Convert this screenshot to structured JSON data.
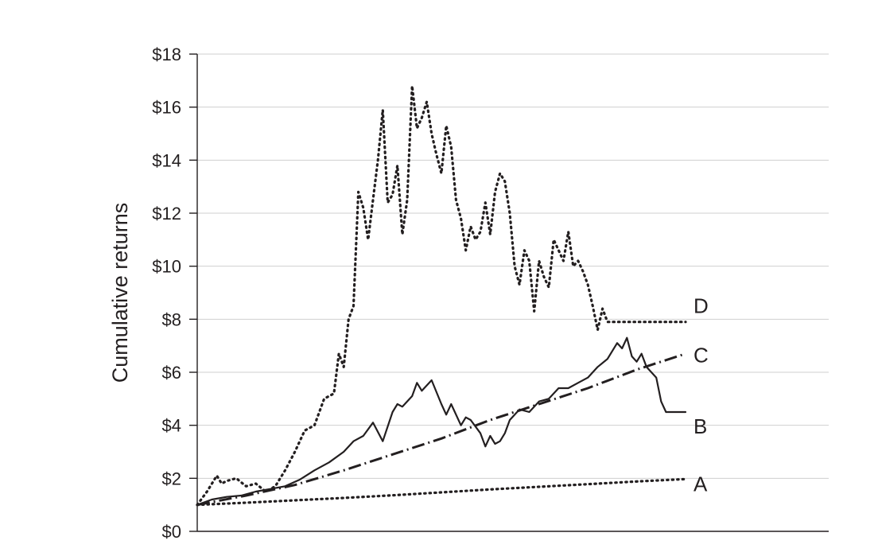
{
  "chart_data": {
    "type": "line",
    "title": "",
    "xlabel": "",
    "ylabel": "Cumulative returns",
    "ylim": [
      0,
      18
    ],
    "xlim": [
      0,
      100
    ],
    "yticks": [
      0,
      2,
      4,
      6,
      8,
      10,
      12,
      14,
      16,
      18
    ],
    "ytick_labels": [
      "$0",
      "$2",
      "$4",
      "$6",
      "$8",
      "$10",
      "$12",
      "$14",
      "$16",
      "$18"
    ],
    "grid": true,
    "series": [
      {
        "name": "A",
        "style": "dotted",
        "x": [
          0,
          10,
          20,
          30,
          40,
          50,
          60,
          70,
          80,
          90,
          100
        ],
        "y": [
          1.0,
          1.08,
          1.17,
          1.26,
          1.36,
          1.47,
          1.58,
          1.68,
          1.78,
          1.88,
          1.97
        ]
      },
      {
        "name": "B",
        "style": "solid",
        "x": [
          0,
          3,
          6,
          9,
          12,
          15,
          18,
          21,
          24,
          27,
          30,
          32,
          34,
          36,
          38,
          40,
          41,
          42,
          44,
          45,
          46,
          48,
          50,
          51,
          52,
          54,
          55,
          56,
          58,
          59,
          60,
          61,
          62,
          63,
          64,
          66,
          68,
          70,
          72,
          74,
          76,
          78,
          80,
          82,
          84,
          86,
          87,
          88,
          89,
          90,
          91,
          92,
          94,
          95,
          96,
          97,
          98,
          99,
          100
        ],
        "y": [
          1.0,
          1.2,
          1.3,
          1.35,
          1.5,
          1.6,
          1.7,
          1.95,
          2.3,
          2.6,
          3.0,
          3.4,
          3.6,
          4.1,
          3.4,
          4.5,
          4.8,
          4.7,
          5.1,
          5.6,
          5.3,
          5.7,
          4.8,
          4.4,
          4.8,
          4.0,
          4.3,
          4.2,
          3.7,
          3.2,
          3.6,
          3.3,
          3.4,
          3.7,
          4.2,
          4.6,
          4.5,
          4.9,
          5.0,
          5.4,
          5.4,
          5.6,
          5.8,
          6.2,
          6.5,
          7.1,
          6.9,
          7.3,
          6.6,
          6.4,
          6.7,
          6.2,
          5.8,
          4.9,
          4.5,
          4.5,
          4.5,
          4.5,
          4.5
        ]
      },
      {
        "name": "C",
        "style": "dash-dot",
        "x": [
          0,
          10,
          20,
          30,
          40,
          50,
          60,
          70,
          80,
          90,
          100
        ],
        "y": [
          1.0,
          1.35,
          1.75,
          2.3,
          2.9,
          3.5,
          4.2,
          4.8,
          5.4,
          6.1,
          6.7
        ]
      },
      {
        "name": "D",
        "style": "dotted",
        "x": [
          0,
          2,
          4,
          5,
          6,
          8,
          10,
          12,
          14,
          16,
          18,
          20,
          22,
          24,
          26,
          28,
          29,
          30,
          31,
          32,
          33,
          34,
          35,
          36,
          37,
          38,
          39,
          40,
          41,
          42,
          43,
          44,
          45,
          46,
          47,
          48,
          49,
          50,
          51,
          52,
          53,
          54,
          55,
          56,
          57,
          58,
          59,
          60,
          61,
          62,
          63,
          64,
          65,
          66,
          67,
          68,
          69,
          70,
          71,
          72,
          73,
          74,
          75,
          76,
          77,
          78,
          79,
          80,
          81,
          82,
          83,
          84,
          85,
          86,
          87,
          88,
          89,
          90,
          91,
          92,
          93,
          94,
          95,
          96,
          97,
          98,
          99,
          100
        ],
        "y": [
          1.0,
          1.5,
          2.1,
          1.8,
          1.9,
          2.0,
          1.7,
          1.8,
          1.5,
          1.7,
          2.3,
          3.0,
          3.8,
          4.0,
          5.0,
          5.2,
          6.7,
          6.2,
          8.0,
          8.5,
          12.8,
          12.2,
          11.0,
          12.5,
          14.0,
          15.9,
          12.4,
          12.7,
          13.8,
          11.2,
          12.5,
          16.8,
          15.2,
          15.6,
          16.2,
          15.0,
          14.2,
          13.5,
          15.3,
          14.5,
          12.5,
          11.8,
          10.6,
          11.5,
          11.0,
          11.3,
          12.4,
          11.2,
          12.8,
          13.5,
          13.2,
          12.0,
          10.0,
          9.3,
          10.6,
          10.2,
          8.3,
          10.2,
          9.6,
          9.2,
          11.0,
          10.6,
          10.2,
          11.3,
          10.0,
          10.2,
          9.8,
          9.3,
          8.5,
          7.6,
          8.4,
          7.9,
          7.9,
          7.9,
          7.9,
          7.9,
          7.9,
          7.9,
          7.9,
          7.9,
          7.9,
          7.9,
          7.9,
          7.9,
          7.9,
          7.9,
          7.9,
          7.9
        ]
      }
    ],
    "annotations": [
      {
        "text": "D",
        "series": "D"
      },
      {
        "text": "C",
        "series": "C"
      },
      {
        "text": "B",
        "series": "B"
      },
      {
        "text": "A",
        "series": "A"
      }
    ]
  }
}
